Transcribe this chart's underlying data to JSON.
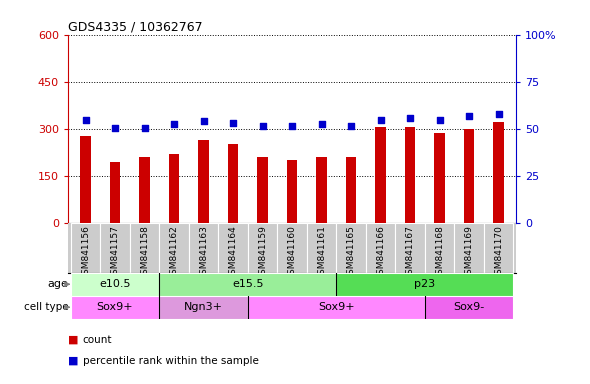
{
  "title": "GDS4335 / 10362767",
  "samples": [
    "GSM841156",
    "GSM841157",
    "GSM841158",
    "GSM841162",
    "GSM841163",
    "GSM841164",
    "GSM841159",
    "GSM841160",
    "GSM841161",
    "GSM841165",
    "GSM841166",
    "GSM841167",
    "GSM841168",
    "GSM841169",
    "GSM841170"
  ],
  "counts": [
    275,
    192,
    210,
    220,
    265,
    252,
    210,
    200,
    210,
    210,
    305,
    305,
    285,
    298,
    320
  ],
  "percentile_ranks": [
    54.5,
    50.5,
    50.5,
    52.5,
    54.0,
    53.0,
    51.5,
    51.5,
    52.5,
    51.5,
    54.5,
    55.5,
    54.5,
    56.5,
    58.0
  ],
  "bar_color": "#cc0000",
  "dot_color": "#0000cc",
  "ylim_left": [
    0,
    600
  ],
  "ylim_right": [
    0,
    100
  ],
  "yticks_left": [
    0,
    150,
    300,
    450,
    600
  ],
  "yticks_right": [
    0,
    25,
    50,
    75,
    100
  ],
  "age_groups": [
    {
      "label": "e10.5",
      "start": 0,
      "end": 3,
      "color": "#ccffcc"
    },
    {
      "label": "e15.5",
      "start": 3,
      "end": 9,
      "color": "#99ee99"
    },
    {
      "label": "p23",
      "start": 9,
      "end": 15,
      "color": "#55dd55"
    }
  ],
  "cell_type_groups": [
    {
      "label": "Sox9+",
      "start": 0,
      "end": 3,
      "color": "#ff88ff"
    },
    {
      "label": "Ngn3+",
      "start": 3,
      "end": 6,
      "color": "#dd99dd"
    },
    {
      "label": "Sox9+",
      "start": 6,
      "end": 12,
      "color": "#ff88ff"
    },
    {
      "label": "Sox9-",
      "start": 12,
      "end": 15,
      "color": "#ee66ee"
    }
  ],
  "bar_width": 0.35,
  "tick_label_bg": "#cccccc",
  "tick_label_color_left": "#cc0000",
  "tick_label_color_right": "#0000cc",
  "background_color": "#ffffff",
  "grid_color": "#000000"
}
